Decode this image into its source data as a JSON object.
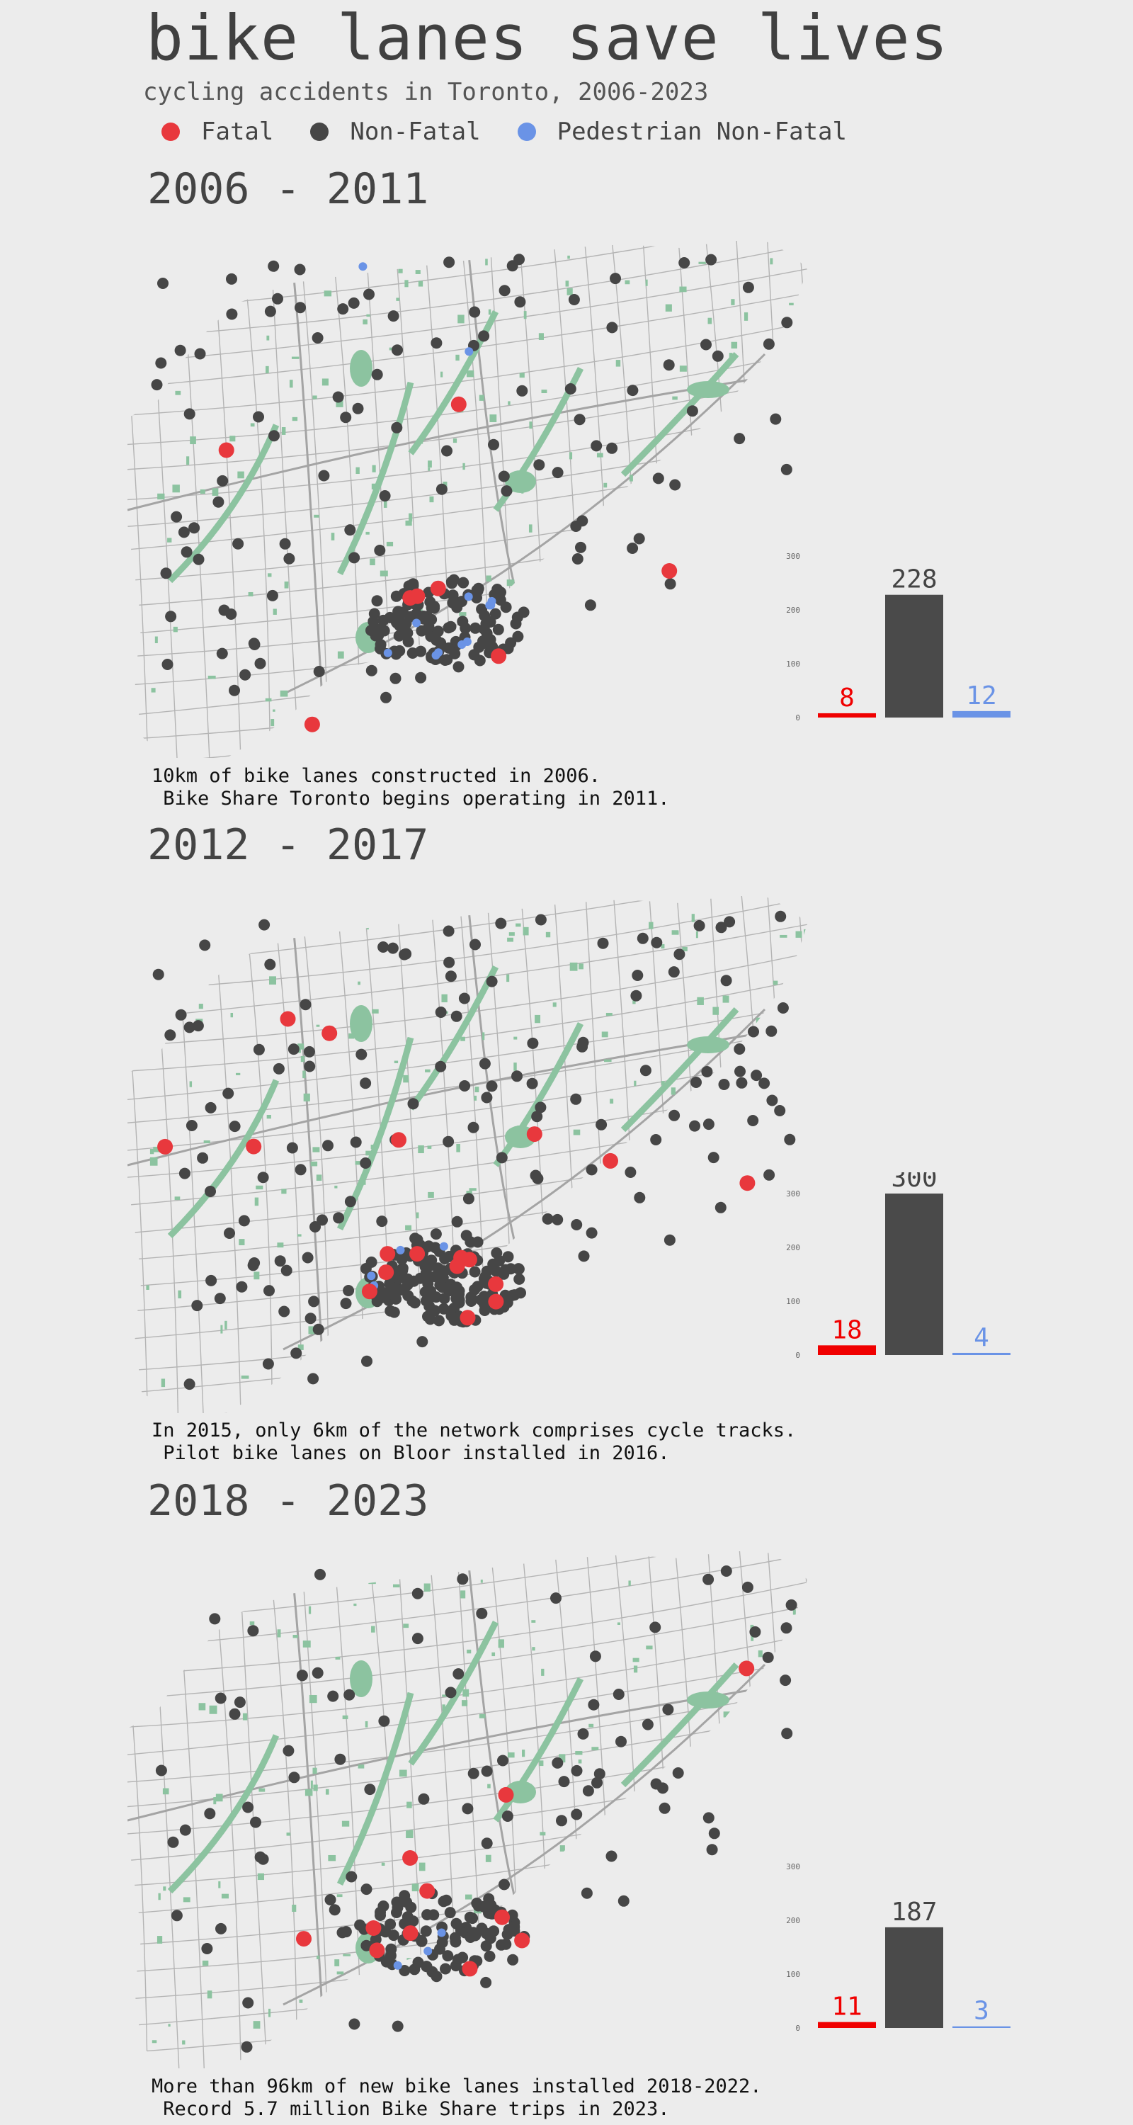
{
  "header": {
    "title": "bike lanes save lives",
    "subtitle": "cycling accidents in Toronto, 2006-2023"
  },
  "legend": [
    {
      "label": "Fatal",
      "color": "#e8383d"
    },
    {
      "label": "Non-Fatal",
      "color": "#464646"
    },
    {
      "label": "Pedestrian Non-Fatal",
      "color": "#6a93e6"
    }
  ],
  "colors": {
    "background": "#ececec",
    "park": "#8cc3a0",
    "road": "#b4b4b4"
  },
  "periods": [
    {
      "title": "2006 - 2011",
      "caption_line1": "10km of bike lanes constructed in 2006.",
      "caption_line2": " Bike Share Toronto begins operating in 2011.",
      "chart_data": {
        "type": "bar",
        "categories": [
          "Fatal",
          "Non-Fatal",
          "Pedestrian Non-Fatal"
        ],
        "values": [
          8,
          228,
          12
        ],
        "ylim": [
          0,
          300
        ],
        "yticks": [
          0,
          100,
          200,
          300
        ]
      }
    },
    {
      "title": "2012 - 2017",
      "caption_line1": "In 2015, only 6km of the network comprises cycle tracks.",
      "caption_line2": " Pilot bike lanes on Bloor installed in 2016.",
      "chart_data": {
        "type": "bar",
        "categories": [
          "Fatal",
          "Non-Fatal",
          "Pedestrian Non-Fatal"
        ],
        "values": [
          18,
          300,
          4
        ],
        "ylim": [
          0,
          300
        ],
        "yticks": [
          0,
          100,
          200,
          300
        ]
      }
    },
    {
      "title": "2018 - 2023",
      "caption_line1": "More than 96km of new bike lanes installed 2018-2022.",
      "caption_line2": " Record 5.7 million Bike Share trips in 2023.",
      "chart_data": {
        "type": "bar",
        "categories": [
          "Fatal",
          "Non-Fatal",
          "Pedestrian Non-Fatal"
        ],
        "values": [
          11,
          187,
          3
        ],
        "ylim": [
          0,
          300
        ],
        "yticks": [
          0,
          100,
          200,
          300
        ]
      }
    }
  ]
}
